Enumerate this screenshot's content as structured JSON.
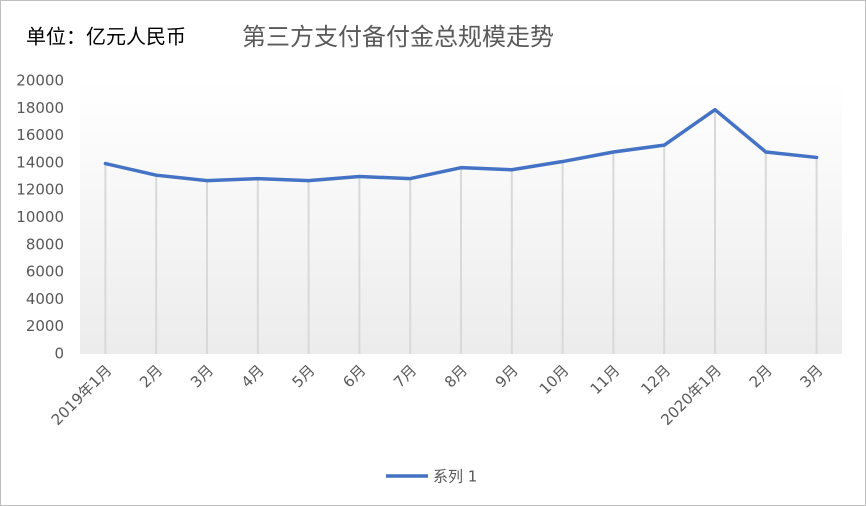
{
  "chart_data": {
    "type": "line",
    "unit_label": "单位：亿元人民币",
    "title": "第三方支付备付金总规模走势",
    "categories": [
      "2019年1月",
      "2月",
      "3月",
      "4月",
      "5月",
      "6月",
      "7月",
      "8月",
      "9月",
      "10月",
      "11月",
      "12月",
      "2020年1月",
      "2月",
      "3月"
    ],
    "series": [
      {
        "name": "系列 1",
        "color": "#4472c4",
        "values": [
          13950,
          13100,
          12700,
          12850,
          12700,
          13000,
          12850,
          13650,
          13500,
          14100,
          14800,
          15300,
          17900,
          14800,
          14400
        ]
      }
    ],
    "ylim": [
      0,
      20000
    ],
    "yticks": [
      0,
      2000,
      4000,
      6000,
      8000,
      10000,
      12000,
      14000,
      16000,
      18000,
      20000
    ],
    "drop_lines": true,
    "legend": "bottom"
  }
}
